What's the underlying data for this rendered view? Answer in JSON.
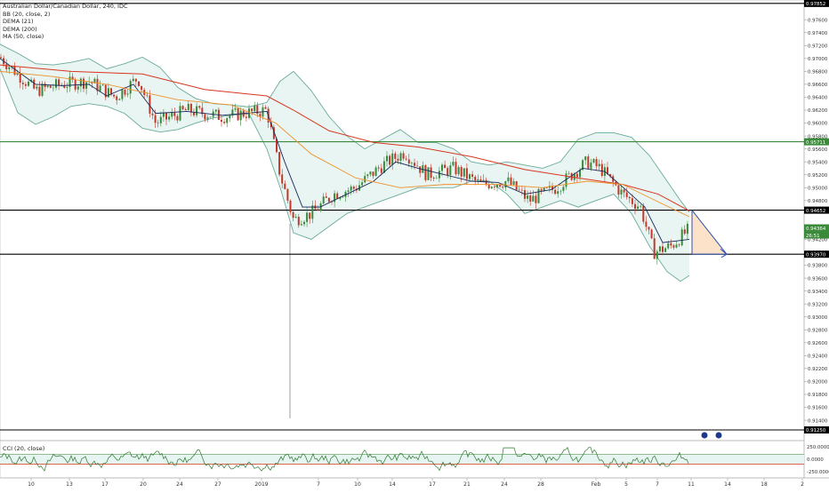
{
  "chart_data": {
    "type": "candlestick",
    "title": "Australian Dollar/Canadian Dollar, 240, IDC",
    "indicators": [
      "BB (20, close, 2)",
      "DEMA (21)",
      "DEMA (200)",
      "MA (50, close)"
    ],
    "oscillator_title": "CCI (20, close)",
    "ylim": [
      0.9125,
      0.9785
    ],
    "y_ticks": [
      "0.97600",
      "0.97400",
      "0.97200",
      "0.97000",
      "0.96800",
      "0.96600",
      "0.96400",
      "0.96200",
      "0.96000",
      "0.95800",
      "0.95600",
      "0.95400",
      "0.95200",
      "0.95000",
      "0.94800",
      "0.94400",
      "0.94200",
      "0.94000",
      "0.93800",
      "0.93600",
      "0.93400",
      "0.93200",
      "0.93000",
      "0.92800",
      "0.92600",
      "0.92400",
      "0.92200",
      "0.92000",
      "0.91800",
      "0.91600",
      "0.91400"
    ],
    "x_ticks": [
      "10",
      "13",
      "17",
      "20",
      "24",
      "27",
      "2019",
      "7",
      "10",
      "14",
      "17",
      "21",
      "24",
      "28",
      "Feb",
      "5",
      "7",
      "11",
      "14",
      "18",
      "2"
    ],
    "horizontal_levels": [
      {
        "label": "0.97852",
        "color": "#000000"
      },
      {
        "label": "0.95711",
        "color": "#3a8a3a"
      },
      {
        "label": "0.94652",
        "color": "#000000"
      },
      {
        "label": "0.93970",
        "color": "#000000"
      },
      {
        "label": "0.91250",
        "color": "#000000"
      }
    ],
    "price_badges": {
      "price": "0.94364",
      "time": "26:51"
    },
    "oscillator_ticks": [
      "250.0000",
      "0.0000",
      "-250.0000"
    ],
    "colors": {
      "bull": "#3a8a3a",
      "bear": "#c0392b",
      "bb_band": "#6aaa9a",
      "bb_fill": "#e6f4f2",
      "dema_fast": "#1a2a5a",
      "dema_slow": "#d9351e",
      "ma50": "#f0922b",
      "projection": "#2f4fb0",
      "projection_fill": "#fbd6b0"
    }
  }
}
